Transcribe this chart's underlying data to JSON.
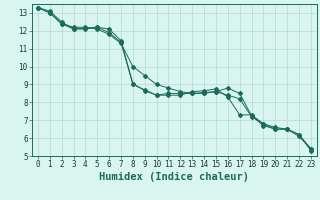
{
  "xlabel": "Humidex (Indice chaleur)",
  "bg_color": "#d9f5f0",
  "grid_color": "#b8d8d2",
  "line_color": "#1a6b5a",
  "x_values": [
    0,
    1,
    2,
    3,
    4,
    5,
    6,
    7,
    8,
    9,
    10,
    11,
    12,
    13,
    14,
    15,
    16,
    17,
    18,
    19,
    20,
    21,
    22,
    23
  ],
  "series1": [
    13.3,
    13.1,
    12.5,
    12.1,
    12.15,
    12.2,
    12.1,
    11.45,
    9.05,
    8.65,
    8.4,
    8.5,
    8.5,
    8.5,
    8.55,
    8.6,
    8.8,
    8.5,
    7.25,
    6.7,
    6.5,
    6.5,
    6.2,
    5.3
  ],
  "series2": [
    13.3,
    13.0,
    12.4,
    12.1,
    12.1,
    12.2,
    11.9,
    11.35,
    9.0,
    8.7,
    8.4,
    8.4,
    8.4,
    8.6,
    8.65,
    8.75,
    8.3,
    7.3,
    7.3,
    6.8,
    6.5,
    6.5,
    6.2,
    5.4
  ],
  "series3": [
    13.3,
    13.0,
    12.4,
    12.2,
    12.2,
    12.1,
    11.8,
    11.3,
    10.0,
    9.5,
    9.0,
    8.8,
    8.6,
    8.5,
    8.5,
    8.6,
    8.4,
    8.2,
    7.2,
    6.8,
    6.6,
    6.5,
    6.1,
    5.4
  ],
  "ylim": [
    5,
    13.5
  ],
  "xlim": [
    -0.5,
    23.5
  ],
  "yticks": [
    5,
    6,
    7,
    8,
    9,
    10,
    11,
    12,
    13
  ],
  "xticks": [
    0,
    1,
    2,
    3,
    4,
    5,
    6,
    7,
    8,
    9,
    10,
    11,
    12,
    13,
    14,
    15,
    16,
    17,
    18,
    19,
    20,
    21,
    22,
    23
  ],
  "tick_fontsize": 5.5,
  "label_fontsize": 7.5
}
